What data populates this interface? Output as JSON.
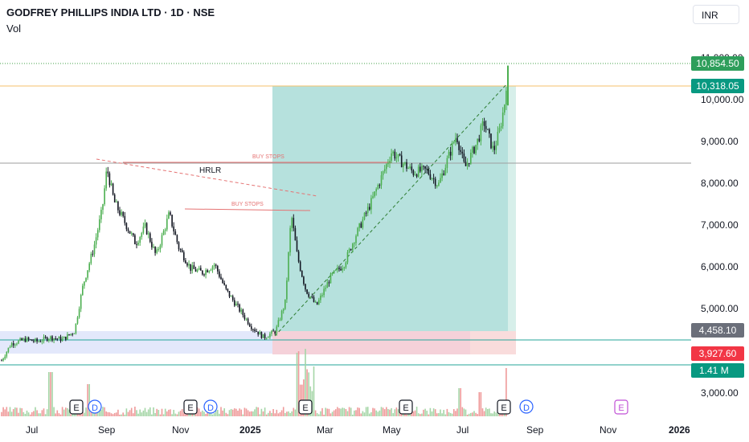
{
  "header": {
    "title": "GODFREY PHILLIPS INDIA LTD · 1D · NSE",
    "indicator": "Vol",
    "currency": "INR"
  },
  "price_badges": {
    "last": "10,854.50",
    "level_high": "10,318.05",
    "zone_top": "4,458.10",
    "zone_low": "3,927.60",
    "volume": "1.41 M"
  },
  "annotations": {
    "buy_stops_1": "BUY STOPS",
    "buy_stops_2": "BUY STOPS",
    "hrlr": "HRLR"
  },
  "event_markers": [
    {
      "x_label": "Jul",
      "type": "E"
    },
    {
      "x_label": "Jul",
      "type": "D"
    },
    {
      "x_label": "Oct",
      "type": "E"
    },
    {
      "x_label": "Oct",
      "type": "D"
    },
    {
      "x_label": "Feb",
      "type": "E"
    },
    {
      "x_label": "May",
      "type": "E"
    },
    {
      "x_label": "Aug",
      "type": "E"
    },
    {
      "x_label": "Aug",
      "type": "D"
    },
    {
      "x_label": "Oct",
      "type": "E"
    }
  ],
  "colors": {
    "up": "#26a69a",
    "down": "#131722",
    "line_up": "#4caf50",
    "profit_zone": "#b2dfdb",
    "loss_zone": "#f8d7da",
    "demand_zone": "#e3e8fb",
    "annotation_red": "#e57373",
    "badge_green": "#2e9e5b",
    "badge_teal": "#089981",
    "badge_grey": "#6b6f7a",
    "badge_red": "#f23645"
  },
  "chart_data": {
    "type": "candlestick",
    "title": "GODFREY PHILLIPS INDIA LTD · 1D · NSE",
    "y_ticks": [
      "11,000.00",
      "10,000.00",
      "9,000.00",
      "8,000.00",
      "7,000.00",
      "6,000.00",
      "5,000.00",
      "3,000.00"
    ],
    "x_ticks": [
      {
        "label": "Jul",
        "bold": false
      },
      {
        "label": "Sep",
        "bold": false
      },
      {
        "label": "Nov",
        "bold": false
      },
      {
        "label": "2025",
        "bold": true
      },
      {
        "label": "Mar",
        "bold": false
      },
      {
        "label": "May",
        "bold": false
      },
      {
        "label": "Jul",
        "bold": false
      },
      {
        "label": "Sep",
        "bold": false
      },
      {
        "label": "Nov",
        "bold": false
      },
      {
        "label": "2026",
        "bold": true
      }
    ],
    "ylim": [
      2800,
      11200
    ],
    "price_path": [
      [
        "2024-06-20",
        3800
      ],
      [
        "2024-06-28",
        4200
      ],
      [
        "2024-07-10",
        4300
      ],
      [
        "2024-07-20",
        4250
      ],
      [
        "2024-07-30",
        4350
      ],
      [
        "2024-08-10",
        4300
      ],
      [
        "2024-08-20",
        4500
      ],
      [
        "2024-08-27",
        5600
      ],
      [
        "2024-09-05",
        6500
      ],
      [
        "2024-09-12",
        7400
      ],
      [
        "2024-09-16",
        8400
      ],
      [
        "2024-09-22",
        7600
      ],
      [
        "2024-10-01",
        7100
      ],
      [
        "2024-10-10",
        6600
      ],
      [
        "2024-10-18",
        7000
      ],
      [
        "2024-10-27",
        6300
      ],
      [
        "2024-11-07",
        7300
      ],
      [
        "2024-11-15",
        6500
      ],
      [
        "2024-11-25",
        6000
      ],
      [
        "2024-12-05",
        5900
      ],
      [
        "2024-12-15",
        6100
      ],
      [
        "2024-12-24",
        5500
      ],
      [
        "2025-01-05",
        5000
      ],
      [
        "2025-01-15",
        4600
      ],
      [
        "2025-01-25",
        4350
      ],
      [
        "2025-02-04",
        4500
      ],
      [
        "2025-02-12",
        5200
      ],
      [
        "2025-02-17",
        7300
      ],
      [
        "2025-02-22",
        6300
      ],
      [
        "2025-03-01",
        5500
      ],
      [
        "2025-03-10",
        5100
      ],
      [
        "2025-03-22",
        5800
      ],
      [
        "2025-04-02",
        6100
      ],
      [
        "2025-04-12",
        6800
      ],
      [
        "2025-04-25",
        7600
      ],
      [
        "2025-05-05",
        8300
      ],
      [
        "2025-05-12",
        8800
      ],
      [
        "2025-05-18",
        8600
      ],
      [
        "2025-05-30",
        8300
      ],
      [
        "2025-06-10",
        8350
      ],
      [
        "2025-06-20",
        8000
      ],
      [
        "2025-06-30",
        8800
      ],
      [
        "2025-07-05",
        9200
      ],
      [
        "2025-07-12",
        8400
      ],
      [
        "2025-07-22",
        9000
      ],
      [
        "2025-07-28",
        9500
      ],
      [
        "2025-08-05",
        8800
      ],
      [
        "2025-08-10",
        9300
      ],
      [
        "2025-08-14",
        9900
      ],
      [
        "2025-08-17",
        10854
      ]
    ],
    "volume_note": "volume histogram at bottom; spikes near Feb 2025"
  }
}
